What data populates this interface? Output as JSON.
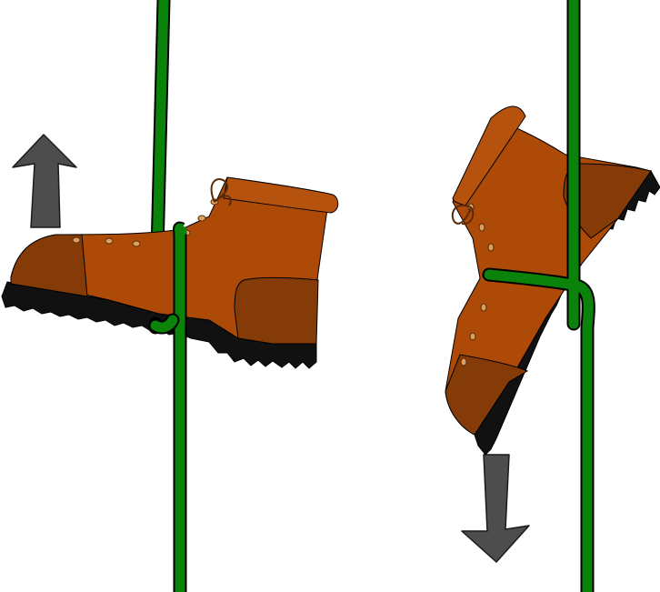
{
  "diagram": {
    "panels": [
      {
        "name": "left",
        "direction": "up",
        "items": [
          "boot",
          "rope",
          "rope-wrap",
          "arrow"
        ]
      },
      {
        "name": "right",
        "direction": "down",
        "items": [
          "boot",
          "rope",
          "rope-wrap",
          "arrow"
        ]
      }
    ],
    "colors": {
      "background": "#ffffff",
      "rope": "#0b830b",
      "rope_outline": "#000000",
      "boot_upper": "#ad4a07",
      "boot_toe_heel": "#843b07",
      "boot_collar": "#b5520e",
      "sole": "#111111",
      "lace": "#5a2a08",
      "arrow_fill": "#4d4d4d",
      "arrow_outline": "#1a1a1a"
    },
    "icons": [
      "boot-icon",
      "rope-icon",
      "arrow-up-icon",
      "arrow-down-icon"
    ]
  }
}
